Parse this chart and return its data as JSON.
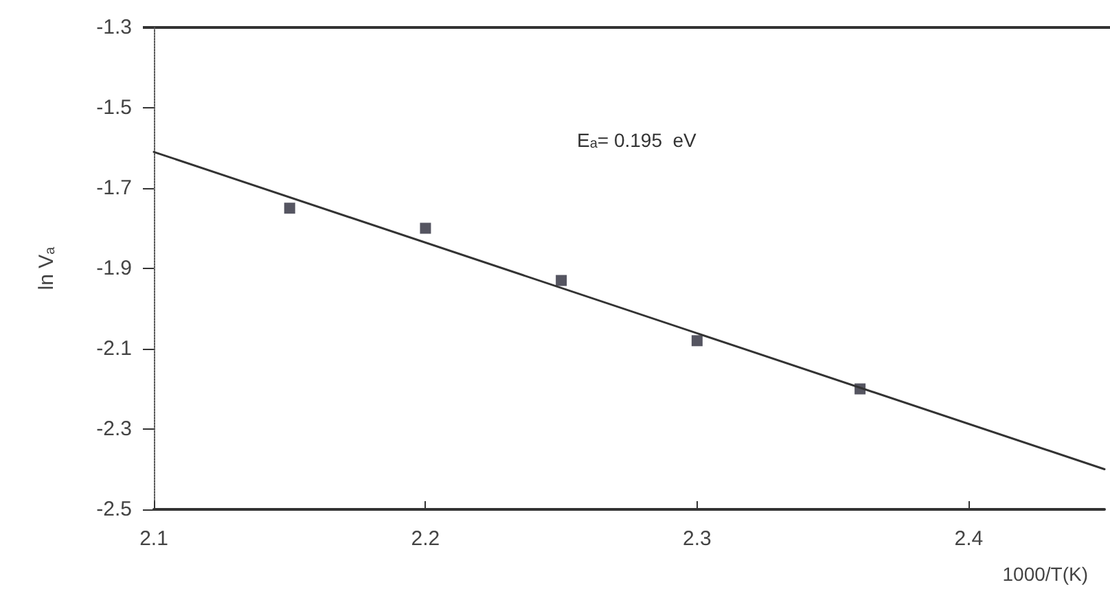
{
  "chart_data": {
    "type": "scatter",
    "xlabel": "1000/T(K)",
    "ylabel": "ln V$_{a}$",
    "annotations": [
      "E$_{a}$= 0.195  eV"
    ],
    "x": [
      2.15,
      2.2,
      2.25,
      2.3,
      2.36
    ],
    "series": [
      {
        "type": "scatter",
        "color": "#2a2a3a",
        "marker": "square",
        "values": [
          -1.75,
          -1.8,
          -1.93,
          -2.08,
          -2.2
        ]
      },
      {
        "type": "line",
        "color": "#333333",
        "marker": "none",
        "line_style": "solid",
        "x": [
          2.1,
          2.45
        ],
        "values": [
          -1.61,
          -2.4
        ]
      }
    ],
    "xlim": [
      2.1,
      2.45
    ],
    "xticks": [
      2.1,
      2.2,
      2.3,
      2.4
    ],
    "ylim": [
      -2.5,
      -1.3
    ],
    "yticks": [
      -1.3,
      -1.5,
      -1.7,
      -1.9,
      -2.1,
      -2.3,
      -2.5
    ],
    "grid": false
  }
}
